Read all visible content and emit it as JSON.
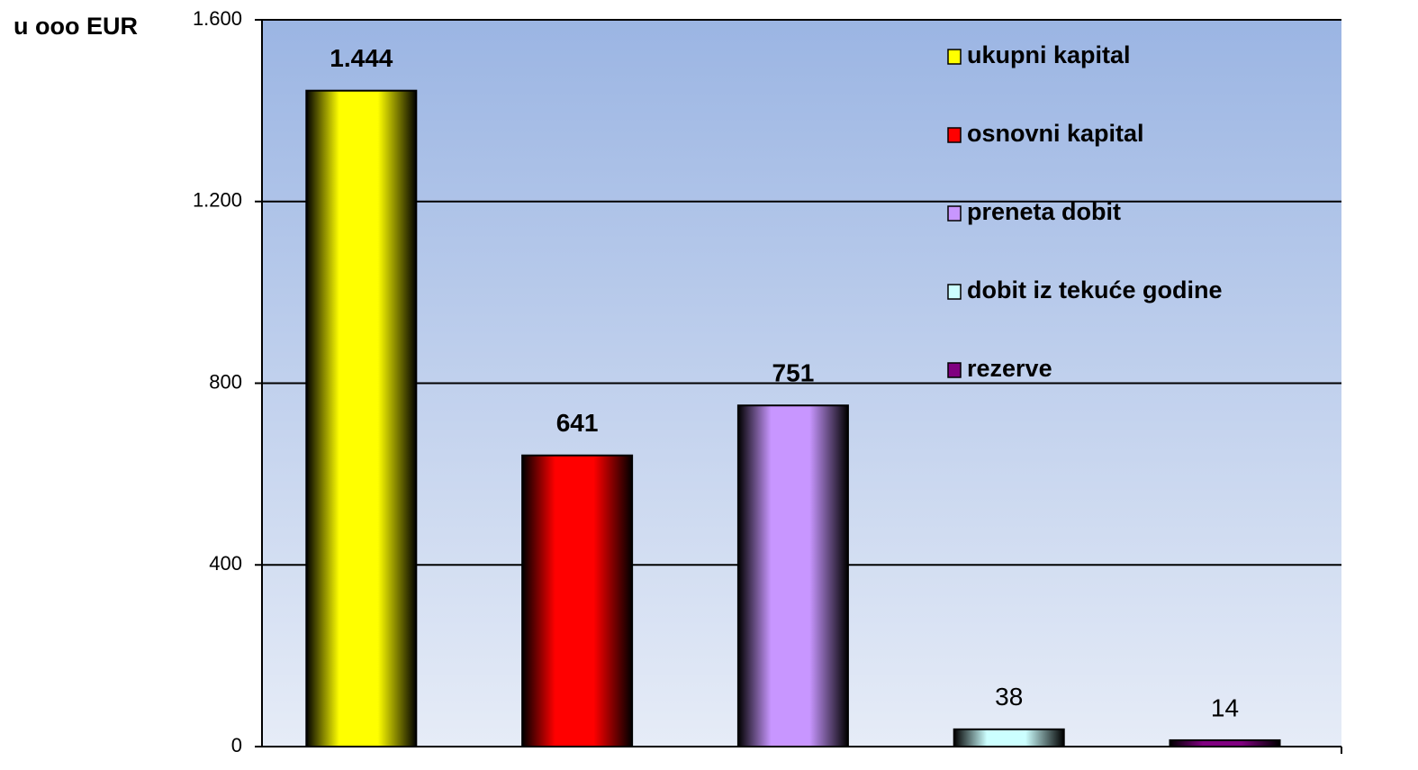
{
  "chart_data": {
    "type": "bar",
    "y_label": "u ooo EUR",
    "categories": [
      "ukupni kapital",
      "osnovni kapital",
      "preneta dobit",
      "dobit iz tekuće godine",
      "rezerve"
    ],
    "values": [
      1444,
      641,
      751,
      38,
      14
    ],
    "value_labels": [
      "1.444",
      "641",
      "751",
      "38",
      "14"
    ],
    "colors": [
      "#ffff00",
      "#ff0000",
      "#c896ff",
      "#ccffff",
      "#800080"
    ],
    "ylim": [
      0,
      1600
    ],
    "yticks": [
      0,
      400,
      800,
      {
        "value": 1200,
        "label": "1.200"
      },
      {
        "value": 1600,
        "label": "1.600"
      }
    ],
    "grid": true
  }
}
